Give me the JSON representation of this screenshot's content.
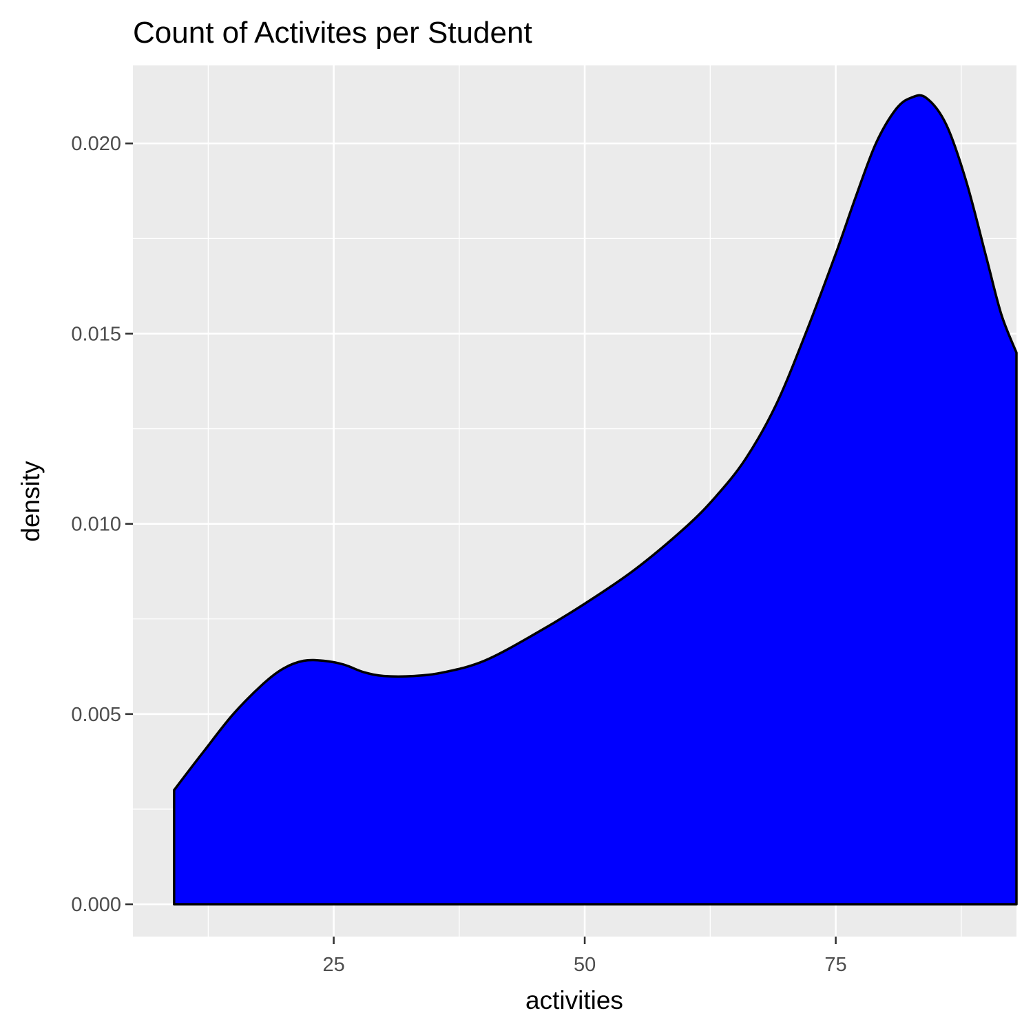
{
  "chart_data": {
    "type": "area",
    "title": "Count of Activites per Student",
    "xlabel": "activities",
    "ylabel": "density",
    "xlim": [
      5,
      93
    ],
    "ylim": [
      -0.00085,
      0.02205
    ],
    "x_ticks": [
      25,
      50,
      75
    ],
    "x_tick_labels": [
      "25",
      "50",
      "75"
    ],
    "y_ticks": [
      0.0,
      0.005,
      0.01,
      0.015,
      0.02
    ],
    "y_tick_labels": [
      "0.000",
      "0.005",
      "0.010",
      "0.015",
      "0.020"
    ],
    "grid": true,
    "legend": "none",
    "fill_color": "#0000ff",
    "line_color": "#000000",
    "panel_color": "#ebebeb",
    "series": [
      {
        "x": [
          9.1,
          12,
          15,
          18,
          20,
          22,
          24,
          26,
          28,
          30,
          33,
          36,
          40,
          45,
          50,
          55,
          60,
          63,
          66,
          69,
          72,
          75,
          77,
          79,
          81,
          82.5,
          84,
          86,
          88,
          90,
          91.5,
          93
        ],
        "y": [
          0.003,
          0.004,
          0.005,
          0.0058,
          0.0062,
          0.0064,
          0.0064,
          0.0063,
          0.0061,
          0.006,
          0.006,
          0.0061,
          0.0064,
          0.0071,
          0.0079,
          0.0088,
          0.0099,
          0.0107,
          0.0117,
          0.0131,
          0.015,
          0.0171,
          0.0186,
          0.02,
          0.0209,
          0.0212,
          0.0212,
          0.0205,
          0.019,
          0.017,
          0.0155,
          0.0145
        ]
      }
    ]
  }
}
